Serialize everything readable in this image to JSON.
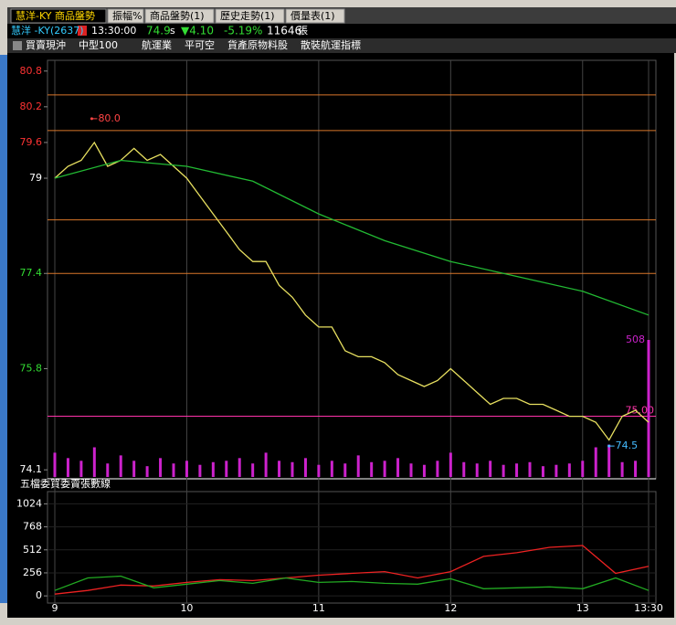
{
  "tabs": [
    "慧洋-KY 商品盤勢",
    "振幅%",
    "商品盤勢(1)",
    "歷史走勢(1)",
    "價量表(1)"
  ],
  "quote": {
    "name": "慧洋 -KY(2637)",
    "time": "13:30:00",
    "price": "74.9",
    "flag": "s",
    "change": "▼4.10",
    "percent": "-5.19%",
    "volume": "11646",
    "unit": "張"
  },
  "toolbar": [
    "買賣現沖",
    "中型100",
    "航運業",
    "平可空",
    "貨產原物料股",
    "散裝航運指標"
  ],
  "chart_data": [
    {
      "type": "line",
      "xlim": [
        9,
        13.5
      ],
      "xticks": [
        9,
        10,
        11,
        12,
        13,
        {
          "value": 13.5,
          "label": "13:30"
        }
      ],
      "ylim": [
        73.98,
        80.95
      ],
      "yticks": [
        74.1,
        75.8,
        77.4,
        79.0,
        79.6,
        80.2,
        80.8
      ],
      "ytick_colors": [
        "#ffffff",
        "#33dd33",
        "#33dd33",
        "#ffffff",
        "#ff3333",
        "#ff3333",
        "#ff3333"
      ],
      "series": [
        {
          "color": "#e8e060",
          "x": [
            9.0,
            9.1,
            9.2,
            9.3,
            9.4,
            9.5,
            9.6,
            9.7,
            9.8,
            9.9,
            10.0,
            10.1,
            10.2,
            10.3,
            10.4,
            10.5,
            10.6,
            10.7,
            10.8,
            10.9,
            11.0,
            11.1,
            11.2,
            11.3,
            11.4,
            11.5,
            11.6,
            11.7,
            11.8,
            11.9,
            12.0,
            12.1,
            12.2,
            12.3,
            12.4,
            12.5,
            12.6,
            12.7,
            12.8,
            12.9,
            13.0,
            13.1,
            13.2,
            13.3,
            13.4,
            13.5
          ],
          "values": [
            79.0,
            79.2,
            79.3,
            79.6,
            79.2,
            79.3,
            79.5,
            79.3,
            79.4,
            79.2,
            79.0,
            78.7,
            78.4,
            78.1,
            77.8,
            77.6,
            77.6,
            77.2,
            77.0,
            76.7,
            76.5,
            76.5,
            76.1,
            76.0,
            76.0,
            75.9,
            75.7,
            75.6,
            75.5,
            75.6,
            75.8,
            75.6,
            75.4,
            75.2,
            75.3,
            75.3,
            75.2,
            75.2,
            75.1,
            75.0,
            75.0,
            74.9,
            74.6,
            75.0,
            75.1,
            74.9
          ]
        },
        {
          "color": "#22bb33",
          "x": [
            9.0,
            9.5,
            10.0,
            10.5,
            11.0,
            11.5,
            12.0,
            12.5,
            13.0,
            13.5
          ],
          "values": [
            79.0,
            79.3,
            79.2,
            78.95,
            78.4,
            77.95,
            77.6,
            77.35,
            77.1,
            76.7
          ]
        }
      ],
      "reference_lines": [
        {
          "value": 80.4,
          "color": "#d9772a"
        },
        {
          "value": 79.8,
          "color": "#d9772a"
        },
        {
          "value": 78.3,
          "color": "#d9772a"
        },
        {
          "value": 77.4,
          "color": "#d9772a"
        },
        {
          "value": 75.0,
          "color": "#ff33aa",
          "label": "75.00"
        }
      ],
      "annotations": [
        {
          "x": 9.28,
          "y": 80.0,
          "label": "80.0",
          "color": "#ff4444"
        },
        {
          "x": 13.2,
          "y": 74.5,
          "label": "74.5",
          "color": "#44bbff"
        }
      ],
      "volume": {
        "color": "#cc22cc",
        "values": [
          90,
          70,
          60,
          110,
          50,
          80,
          60,
          40,
          70,
          50,
          60,
          45,
          55,
          60,
          70,
          50,
          90,
          60,
          55,
          70,
          45,
          60,
          50,
          80,
          55,
          60,
          70,
          50,
          45,
          60,
          90,
          55,
          50,
          60,
          45,
          50,
          55,
          40,
          45,
          50,
          60,
          110,
          120,
          55,
          60,
          508
        ],
        "value_labels": [
          null,
          null,
          null,
          null,
          null,
          null,
          null,
          null,
          null,
          null,
          null,
          null,
          null,
          null,
          null,
          null,
          null,
          null,
          null,
          null,
          null,
          null,
          null,
          null,
          null,
          null,
          null,
          null,
          null,
          null,
          null,
          null,
          null,
          null,
          null,
          null,
          null,
          null,
          null,
          null,
          null,
          null,
          null,
          null,
          null,
          "508"
        ]
      }
    },
    {
      "type": "line",
      "title": "五檔委買委賣張數線",
      "xlim": [
        9,
        13.5
      ],
      "ylim": [
        -80,
        1140
      ],
      "yticks": [
        0,
        256,
        512,
        768,
        1024
      ],
      "series": [
        {
          "color": "#ee2222",
          "x": [
            9.0,
            9.25,
            9.5,
            9.75,
            10.0,
            10.25,
            10.5,
            10.75,
            11.0,
            11.25,
            11.5,
            11.75,
            12.0,
            12.25,
            12.5,
            12.75,
            13.0,
            13.25,
            13.5
          ],
          "values": [
            20,
            60,
            120,
            110,
            150,
            180,
            170,
            200,
            230,
            250,
            270,
            200,
            270,
            440,
            480,
            540,
            560,
            250,
            330
          ]
        },
        {
          "color": "#22aa22",
          "x": [
            9.0,
            9.25,
            9.5,
            9.75,
            10.0,
            10.25,
            10.5,
            10.75,
            11.0,
            11.25,
            11.5,
            11.75,
            12.0,
            12.25,
            12.5,
            12.75,
            13.0,
            13.25,
            13.5
          ],
          "values": [
            60,
            200,
            220,
            90,
            130,
            170,
            140,
            200,
            150,
            160,
            140,
            130,
            190,
            80,
            90,
            100,
            80,
            200,
            60
          ]
        }
      ]
    }
  ]
}
